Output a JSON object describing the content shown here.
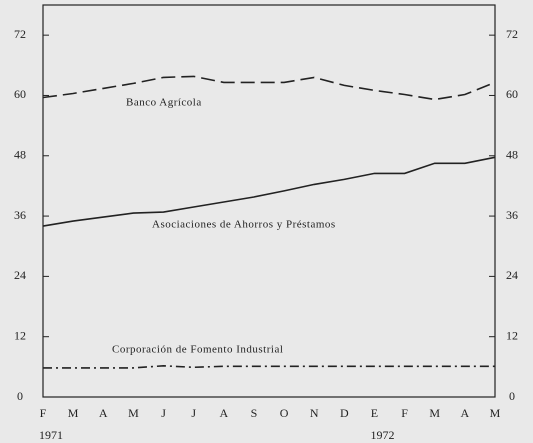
{
  "chart_data": {
    "type": "line",
    "categories": [
      "F",
      "M",
      "A",
      "M",
      "J",
      "J",
      "A",
      "S",
      "O",
      "N",
      "D",
      "E",
      "F",
      "M",
      "A",
      "M"
    ],
    "x_group_labels": [
      "1971",
      "1972"
    ],
    "series": [
      {
        "name": "Banco Agrícola",
        "color": "#222222",
        "dash": "dashed",
        "values": [
          59.6,
          60.4,
          61.4,
          62.4,
          63.6,
          63.8,
          62.6,
          62.6,
          62.6,
          63.6,
          62,
          61,
          60.2,
          59.2,
          60.2,
          62.6
        ]
      },
      {
        "name": "Asociaciones de Ahorros y Préstamos",
        "color": "#222222",
        "dash": "solid",
        "values": [
          34,
          35,
          35.8,
          36.6,
          36.8,
          37.8,
          38.8,
          39.8,
          41,
          42.3,
          43.3,
          44.5,
          44.5,
          46.5,
          46.5,
          47.7
        ]
      },
      {
        "name": "Corporación de Fomento Industrial",
        "color": "#222222",
        "dash": "dashdot",
        "values": [
          5.8,
          5.8,
          5.8,
          5.8,
          6.2,
          5.9,
          6.1,
          6.1,
          6.1,
          6.1,
          6.1,
          6.1,
          6.1,
          6.1,
          6.1,
          6.1
        ]
      }
    ],
    "ylim": [
      0,
      78
    ],
    "yticks": [
      0,
      12,
      24,
      36,
      48,
      60,
      72
    ],
    "grid": false
  }
}
